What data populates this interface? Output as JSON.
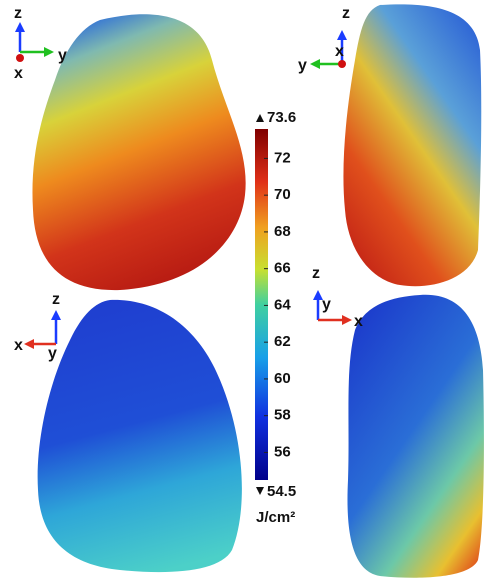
{
  "colorbar": {
    "max": 73.6,
    "min": 54.5,
    "ticks": [
      72,
      70,
      68,
      66,
      64,
      62,
      60,
      58,
      56
    ],
    "unit": "J/cm²"
  },
  "views": [
    {
      "axes": [
        "z",
        "y",
        "x"
      ]
    },
    {
      "axes": [
        "z",
        "x",
        "y"
      ]
    },
    {
      "axes": [
        "z",
        "x",
        "y"
      ]
    },
    {
      "axes": [
        "z",
        "y",
        "x"
      ]
    }
  ]
}
